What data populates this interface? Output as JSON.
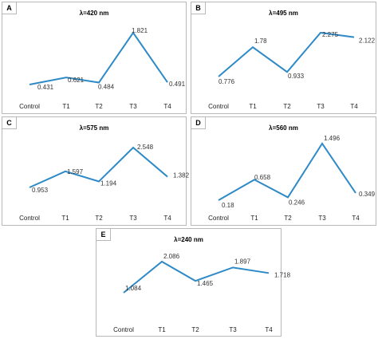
{
  "chart_data": [
    {
      "letter": "A",
      "title": "λ=420 nm",
      "type": "line",
      "categories": [
        "Control",
        "T1",
        "T2",
        "T3",
        "T4"
      ],
      "values": [
        0.431,
        0.621,
        0.484,
        1.821,
        0.491
      ],
      "color": "#2e8ac7"
    },
    {
      "letter": "B",
      "title": "λ=495 nm",
      "type": "line",
      "categories": [
        "Control",
        "T1",
        "T2",
        "T3",
        "T4"
      ],
      "values": [
        0.776,
        1.78,
        0.933,
        2.275,
        2.122
      ],
      "color": "#2e8ac7"
    },
    {
      "letter": "C",
      "title": "λ=575 nm",
      "type": "line",
      "categories": [
        "Control",
        "T1",
        "T2",
        "T3",
        "T4"
      ],
      "values": [
        0.953,
        1.597,
        1.194,
        2.548,
        1.382
      ],
      "color": "#2e8ac7"
    },
    {
      "letter": "D",
      "title": "λ=560 nm",
      "type": "line",
      "categories": [
        "Control",
        "T1",
        "T2",
        "T3",
        "T4"
      ],
      "values": [
        0.18,
        0.658,
        0.246,
        1.496,
        0.349
      ],
      "color": "#2e8ac7"
    },
    {
      "letter": "E",
      "title": "λ=240 nm",
      "type": "line",
      "categories": [
        "Control",
        "T1",
        "T2",
        "T3",
        "T4"
      ],
      "values": [
        1.084,
        2.086,
        1.465,
        1.897,
        1.718
      ],
      "color": "#2e8ac7"
    }
  ]
}
